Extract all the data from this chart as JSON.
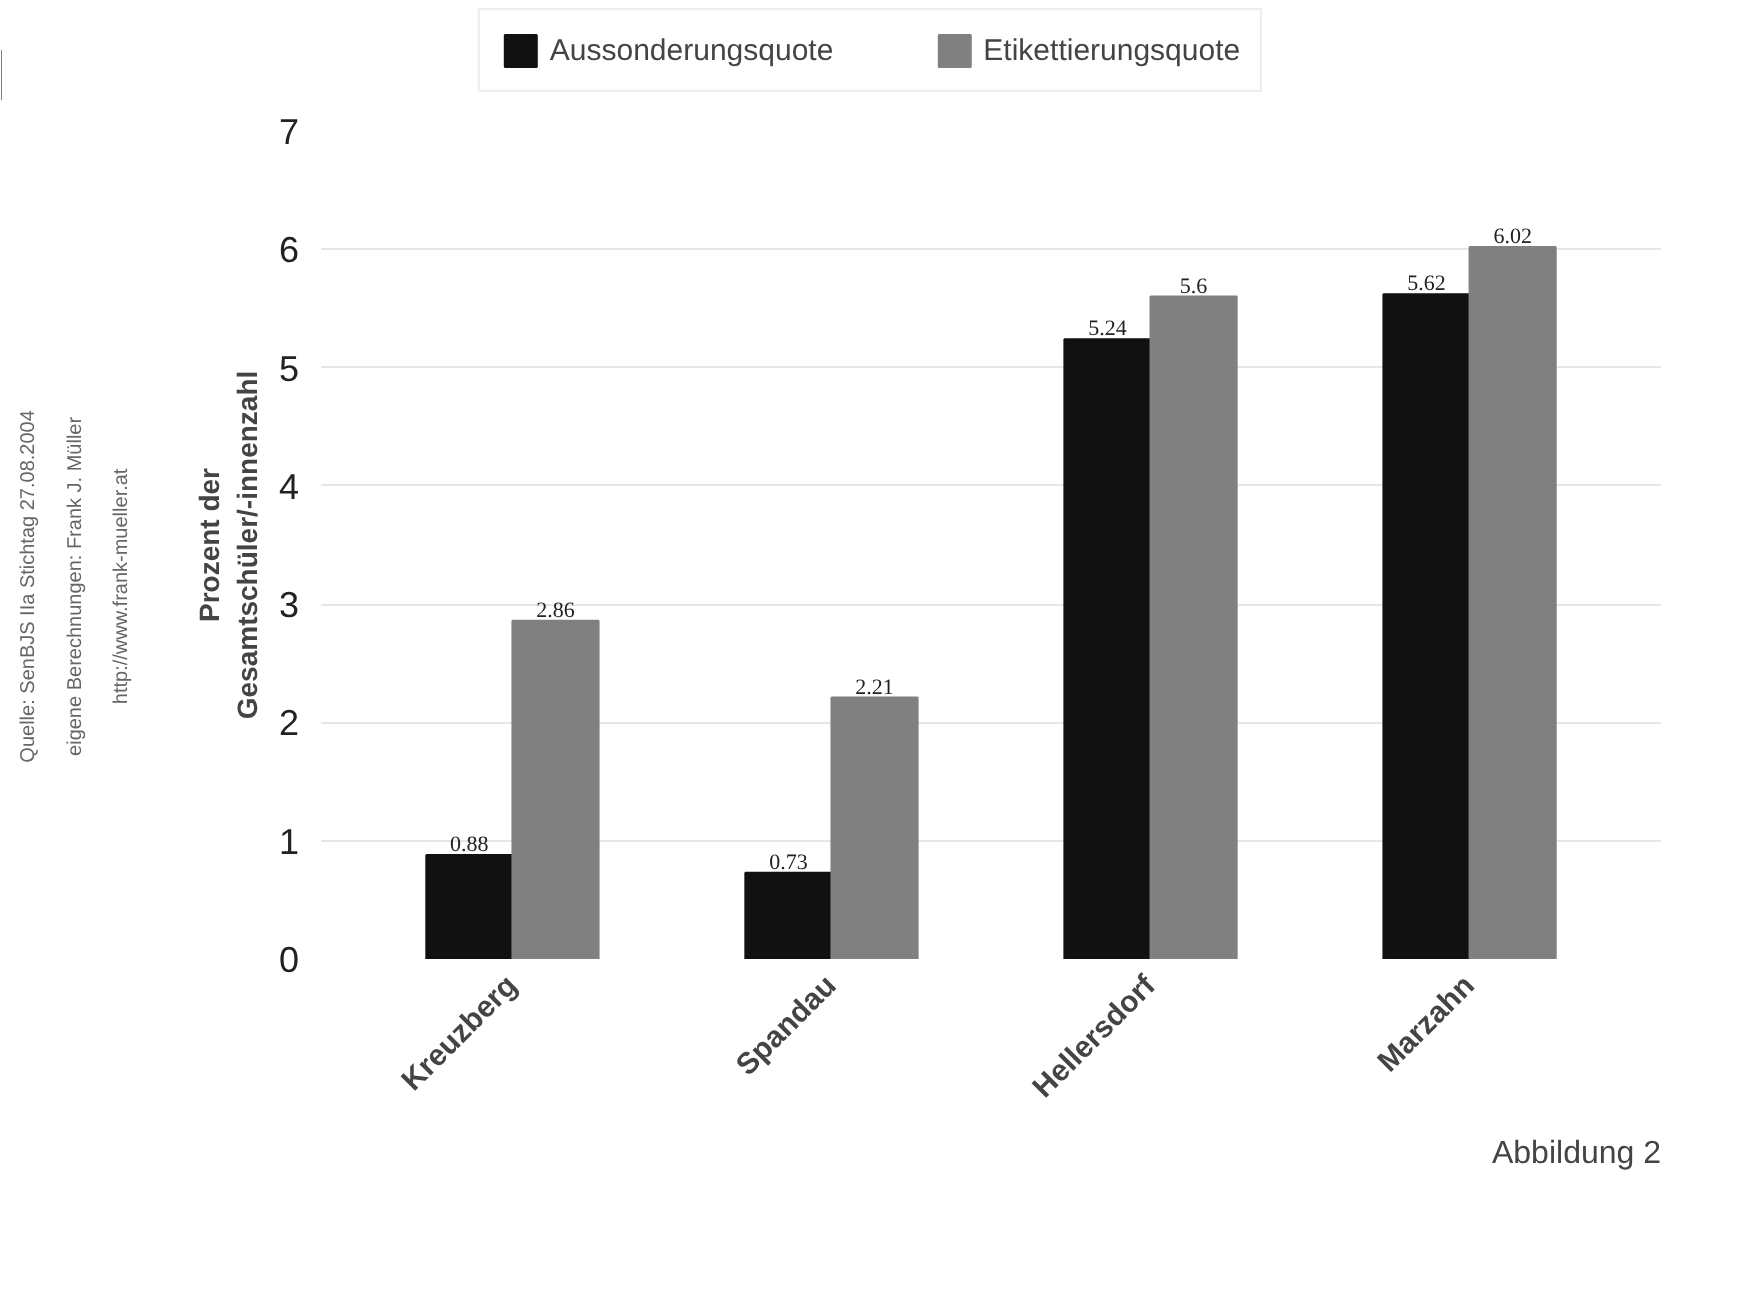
{
  "chart_data": {
    "type": "bar",
    "ylabel": "Prozent der\nGesamtschüler/-innenzahl",
    "categories": [
      "Kreuzberg",
      "Spandau",
      "Hellersdorf",
      "Marzahn"
    ],
    "series": [
      {
        "name": "Aussonderungsquote",
        "color": "#111111",
        "values": [
          0.88,
          0.73,
          5.24,
          5.62
        ]
      },
      {
        "name": "Etikettierungsquote",
        "color": "#808080",
        "values": [
          2.86,
          2.21,
          5.6,
          6.02
        ]
      }
    ],
    "ylim": [
      0,
      7
    ],
    "yticks": [
      0,
      1,
      2,
      3,
      4,
      5,
      6,
      7
    ],
    "grid": "y",
    "legend": "top",
    "data_labels": true,
    "annotations": [
      "Quelle: SenBJS IIa Stichtag 27.08.2004",
      "eigene Berechnungen: Frank J. Müller",
      "http://www.frank-mueller.at",
      "Abbildung 2"
    ]
  }
}
